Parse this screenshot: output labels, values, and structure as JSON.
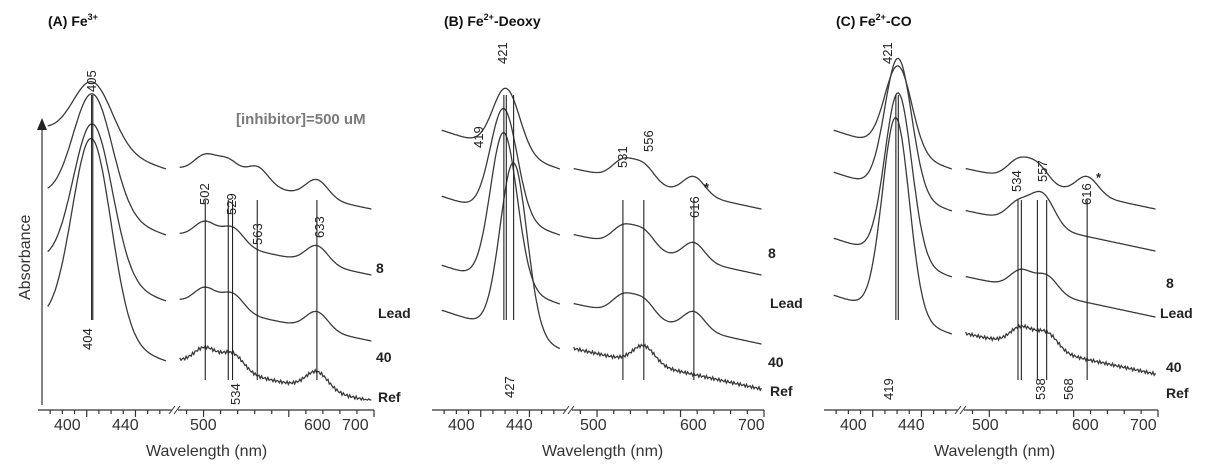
{
  "figure": {
    "y_axis_label": "Absorbance"
  },
  "chart_data": [
    {
      "type": "line",
      "panel": "A",
      "title_prefix": "(A) Fe",
      "title_sup": "3+",
      "title_suffix": "",
      "annotation": "[inhibitor]=500 uM",
      "xlabel": "Wavelength  (nm)",
      "x_axis_break": true,
      "x_ticks_left": [
        "400",
        "440"
      ],
      "x_ticks_right": [
        "500",
        "600",
        "700"
      ],
      "xlim_left": [
        360,
        470
      ],
      "xlim_right": [
        470,
        700
      ],
      "series": [
        {
          "name": "8",
          "soret_peak": 405,
          "visible_peaks": [
            502,
            529,
            563,
            633
          ]
        },
        {
          "name": "Lead",
          "soret_peak": 405,
          "visible_peaks": [
            502,
            534,
            633
          ]
        },
        {
          "name": "40",
          "soret_peak": 405,
          "visible_peaks": [
            502,
            534,
            633
          ]
        },
        {
          "name": "Ref",
          "soret_peak": 404,
          "visible_peaks": [
            502,
            534,
            633
          ]
        }
      ],
      "peak_labels_top": [
        "405",
        "502",
        "529",
        "563",
        "633"
      ],
      "peak_labels_bottom": [
        "404",
        "534"
      ]
    },
    {
      "type": "line",
      "panel": "B",
      "title_prefix": "(B) Fe",
      "title_sup": "2+",
      "title_suffix": "-Deoxy",
      "xlabel": "Wavelength  (nm)",
      "x_axis_break": true,
      "x_ticks_left": [
        "400",
        "440"
      ],
      "x_ticks_right": [
        "500",
        "600",
        "700"
      ],
      "xlim_left": [
        360,
        470
      ],
      "xlim_right": [
        470,
        700
      ],
      "series": [
        {
          "name": "8",
          "soret_peak": 421,
          "visible_peaks": [
            531,
            556,
            616
          ]
        },
        {
          "name": "Lead",
          "soret_peak": 419,
          "visible_peaks": [
            531,
            556,
            616
          ]
        },
        {
          "name": "40",
          "soret_peak": 419,
          "visible_peaks": [
            531,
            556,
            616
          ]
        },
        {
          "name": "Ref",
          "soret_peak": 427,
          "visible_peaks": [
            556
          ]
        }
      ],
      "peak_labels_top": [
        "421",
        "419",
        "531",
        "556",
        "616"
      ],
      "peak_labels_bottom": [
        "427"
      ],
      "star_marker": "*"
    },
    {
      "type": "line",
      "panel": "C",
      "title_prefix": "(C) Fe",
      "title_sup": "2+",
      "title_suffix": "-CO",
      "xlabel": "Wavelength  (nm)",
      "x_axis_break": true,
      "x_ticks_left": [
        "400",
        "440"
      ],
      "x_ticks_right": [
        "500",
        "600",
        "700"
      ],
      "xlim_left": [
        360,
        470
      ],
      "xlim_right": [
        470,
        700
      ],
      "series": [
        {
          "name": "8",
          "soret_peak": 421,
          "visible_peaks": [
            534,
            557,
            616
          ]
        },
        {
          "name": "Lead",
          "soret_peak": 421,
          "visible_peaks": [
            534,
            557,
            568
          ]
        },
        {
          "name": "40",
          "soret_peak": 421,
          "visible_peaks": [
            538,
            568
          ]
        },
        {
          "name": "Ref",
          "soret_peak": 419,
          "visible_peaks": [
            538,
            568
          ]
        }
      ],
      "peak_labels_top": [
        "421",
        "534",
        "557",
        "616"
      ],
      "peak_labels_bottom": [
        "419",
        "538",
        "568"
      ],
      "star_marker": "*"
    }
  ]
}
